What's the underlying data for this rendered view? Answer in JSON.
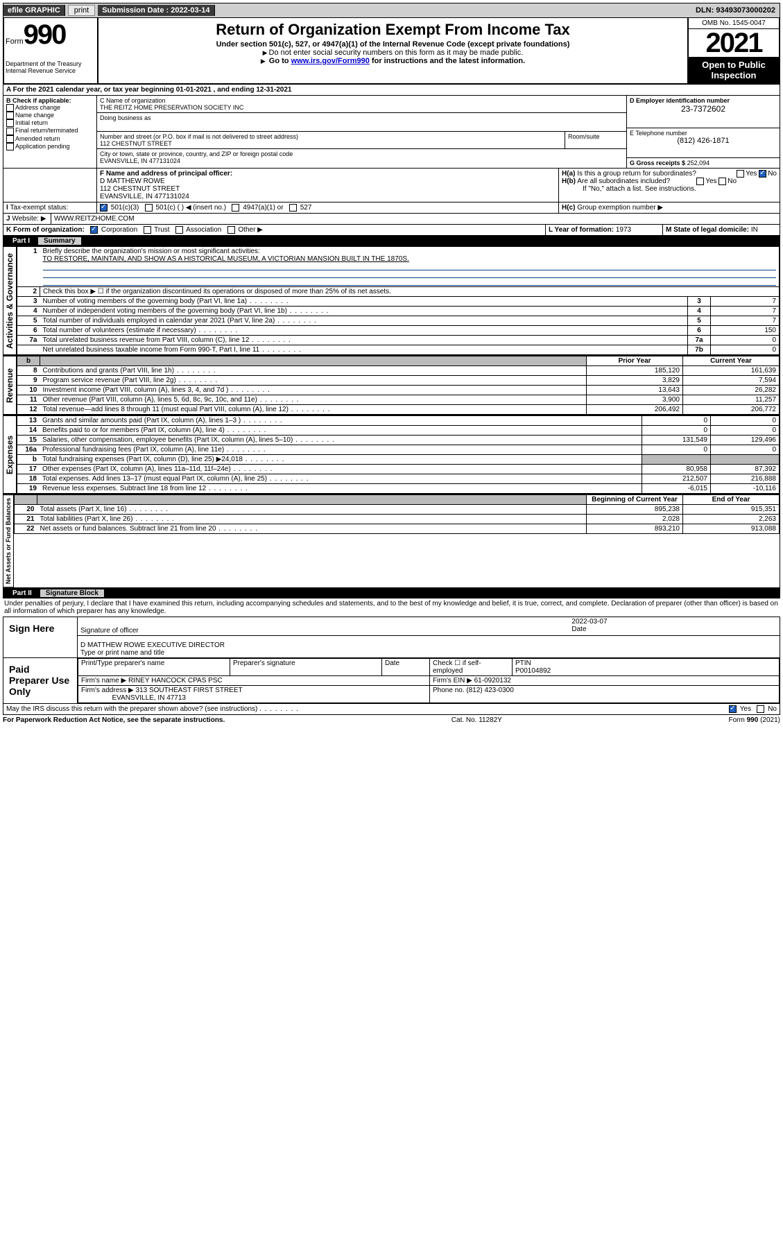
{
  "topbar": {
    "efile": "efile GRAPHIC",
    "print": "print",
    "submission_label": "Submission Date :",
    "submission_date": "2022-03-14",
    "dln_label": "DLN:",
    "dln": "93493073000202"
  },
  "header": {
    "form": "Form",
    "form_no": "990",
    "dept": "Department of the Treasury",
    "irs": "Internal Revenue Service",
    "title": "Return of Organization Exempt From Income Tax",
    "sub": "Under section 501(c), 527, or 4947(a)(1) of the Internal Revenue Code (except private foundations)",
    "note1": "Do not enter social security numbers on this form as it may be made public.",
    "note2_a": "Go to ",
    "note2_link": "www.irs.gov/Form990",
    "note2_b": " for instructions and the latest information.",
    "omb": "OMB No. 1545-0047",
    "year": "2021",
    "open": "Open to Public Inspection"
  },
  "A": {
    "line": "A For the 2021 calendar year, or tax year beginning ",
    "begin": "01-01-2021",
    "mid": " , and ending ",
    "end": "12-31-2021"
  },
  "B": {
    "label": "B Check if applicable:",
    "opts": [
      "Address change",
      "Name change",
      "Initial return",
      "Final return/terminated",
      "Amended return",
      "Application pending"
    ]
  },
  "C": {
    "name_label": "C Name of organization",
    "name": "THE REITZ HOME PRESERVATION SOCIETY INC",
    "dba_label": "Doing business as",
    "addr_label": "Number and street (or P.O. box if mail is not delivered to street address)",
    "room_label": "Room/suite",
    "addr": "112 CHESTNUT STREET",
    "city_label": "City or town, state or province, country, and ZIP or foreign postal code",
    "city": "EVANSVILLE, IN  477131024"
  },
  "D": {
    "label": "D Employer identification number",
    "ein": "23-7372602"
  },
  "E": {
    "label": "E Telephone number",
    "phone": "(812) 426-1871"
  },
  "G": {
    "label": "G Gross receipts $",
    "amount": "252,094"
  },
  "F": {
    "label": "F Name and address of principal officer:",
    "name": "D MATTHEW ROWE",
    "addr1": "112 CHESTNUT STREET",
    "addr2": "EVANSVILLE, IN  477131024"
  },
  "H": {
    "a": "Is this a group return for subordinates?",
    "b": "Are all subordinates included?",
    "c_note": "If \"No,\" attach a list. See instructions.",
    "c_label": "Group exemption number ▶",
    "yes": "Yes",
    "no": "No"
  },
  "I": {
    "label": "Tax-exempt status:",
    "a": "501(c)(3)",
    "b": "501(c) (   ) ◀ (insert no.)",
    "c": "4947(a)(1) or",
    "d": "527"
  },
  "J": {
    "label": "Website: ▶",
    "site": "WWW.REITZHOME.COM"
  },
  "K": {
    "label": "K Form of organization:",
    "a": "Corporation",
    "b": "Trust",
    "c": "Association",
    "d": "Other ▶"
  },
  "L": {
    "label": "L Year of formation:",
    "val": "1973"
  },
  "M": {
    "label": "M State of legal domicile:",
    "val": "IN"
  },
  "part1": {
    "title": "Part I",
    "name": "Summary"
  },
  "summary": {
    "q1a": "Briefly describe the organization's mission or most significant activities:",
    "q1b": "TO RESTORE, MAINTAIN, AND SHOW AS A HISTORICAL MUSEUM, A VICTORIAN MANSION BUILT IN THE 1870S.",
    "q2": "Check this box ▶ ☐  if the organization discontinued its operations or disposed of more than 25% of its net assets.",
    "rows_gov": [
      {
        "n": "3",
        "t": "Number of voting members of the governing body (Part VI, line 1a)",
        "bn": "3",
        "v": "7"
      },
      {
        "n": "4",
        "t": "Number of independent voting members of the governing body (Part VI, line 1b)",
        "bn": "4",
        "v": "7"
      },
      {
        "n": "5",
        "t": "Total number of individuals employed in calendar year 2021 (Part V, line 2a)",
        "bn": "5",
        "v": "7"
      },
      {
        "n": "6",
        "t": "Total number of volunteers (estimate if necessary)",
        "bn": "6",
        "v": "150"
      },
      {
        "n": "7a",
        "t": "Total unrelated business revenue from Part VIII, column (C), line 12",
        "bn": "7a",
        "v": "0"
      },
      {
        "n": "",
        "t": "Net unrelated business taxable income from Form 990-T, Part I, line 11",
        "bn": "7b",
        "v": "0"
      }
    ],
    "col_prior": "Prior Year",
    "col_curr": "Current Year",
    "rev": [
      {
        "n": "8",
        "t": "Contributions and grants (Part VIII, line 1h)",
        "p": "185,120",
        "c": "161,639"
      },
      {
        "n": "9",
        "t": "Program service revenue (Part VIII, line 2g)",
        "p": "3,829",
        "c": "7,594"
      },
      {
        "n": "10",
        "t": "Investment income (Part VIII, column (A), lines 3, 4, and 7d )",
        "p": "13,643",
        "c": "26,282"
      },
      {
        "n": "11",
        "t": "Other revenue (Part VIII, column (A), lines 5, 6d, 8c, 9c, 10c, and 11e)",
        "p": "3,900",
        "c": "11,257"
      },
      {
        "n": "12",
        "t": "Total revenue—add lines 8 through 11 (must equal Part VIII, column (A), line 12)",
        "p": "206,492",
        "c": "206,772"
      }
    ],
    "exp": [
      {
        "n": "13",
        "t": "Grants and similar amounts paid (Part IX, column (A), lines 1–3 )",
        "p": "0",
        "c": "0"
      },
      {
        "n": "14",
        "t": "Benefits paid to or for members (Part IX, column (A), line 4)",
        "p": "0",
        "c": "0"
      },
      {
        "n": "15",
        "t": "Salaries, other compensation, employee benefits (Part IX, column (A), lines 5–10)",
        "p": "131,549",
        "c": "129,496"
      },
      {
        "n": "16a",
        "t": "Professional fundraising fees (Part IX, column (A), line 11e)",
        "p": "0",
        "c": "0"
      },
      {
        "n": "b",
        "t": "Total fundraising expenses (Part IX, column (D), line 25) ▶24,018",
        "p": "",
        "c": "",
        "shade": true
      },
      {
        "n": "17",
        "t": "Other expenses (Part IX, column (A), lines 11a–11d, 11f–24e)",
        "p": "80,958",
        "c": "87,392"
      },
      {
        "n": "18",
        "t": "Total expenses. Add lines 13–17 (must equal Part IX, column (A), line 25)",
        "p": "212,507",
        "c": "216,888"
      },
      {
        "n": "19",
        "t": "Revenue less expenses. Subtract line 18 from line 12",
        "p": "-6,015",
        "c": "-10,116"
      }
    ],
    "col_boy": "Beginning of Current Year",
    "col_eoy": "End of Year",
    "net": [
      {
        "n": "20",
        "t": "Total assets (Part X, line 16)",
        "p": "895,238",
        "c": "915,351"
      },
      {
        "n": "21",
        "t": "Total liabilities (Part X, line 26)",
        "p": "2,028",
        "c": "2,263"
      },
      {
        "n": "22",
        "t": "Net assets or fund balances. Subtract line 21 from line 20",
        "p": "893,210",
        "c": "913,088"
      }
    ]
  },
  "sidelabels": {
    "gov": "Activities & Governance",
    "rev": "Revenue",
    "exp": "Expenses",
    "net": "Net Assets or Fund Balances"
  },
  "part2": {
    "title": "Part II",
    "name": "Signature Block"
  },
  "sig": {
    "decl": "Under penalties of perjury, I declare that I have examined this return, including accompanying schedules and statements, and to the best of my knowledge and belief, it is true, correct, and complete. Declaration of preparer (other than officer) is based on all information of which preparer has any knowledge.",
    "sign_here": "Sign Here",
    "sig_officer": "Signature of officer",
    "date": "Date",
    "sig_date": "2022-03-07",
    "officer_name": "D MATTHEW ROWE  EXECUTIVE DIRECTOR",
    "type_name": "Type or print name and title",
    "paid": "Paid Preparer Use Only",
    "prep_name_label": "Print/Type preparer's name",
    "prep_sig_label": "Preparer's signature",
    "date_label": "Date",
    "check_label": "Check ☐ if self-employed",
    "ptin_label": "PTIN",
    "ptin": "P00104892",
    "firm_name_label": "Firm's name    ▶",
    "firm_name": "RINEY HANCOCK CPAS PSC",
    "firm_ein_label": "Firm's EIN ▶",
    "firm_ein": "61-0920132",
    "firm_addr_label": "Firm's address ▶",
    "firm_addr1": "313 SOUTHEAST FIRST STREET",
    "firm_addr2": "EVANSVILLE, IN  47713",
    "phone_label": "Phone no.",
    "phone": "(812) 423-0300",
    "discuss": "May the IRS discuss this return with the preparer shown above? (see instructions)",
    "yes": "Yes",
    "no": "No"
  },
  "footer": {
    "left": "For Paperwork Reduction Act Notice, see the separate instructions.",
    "mid": "Cat. No. 11282Y",
    "right": "Form 990 (2021)"
  }
}
